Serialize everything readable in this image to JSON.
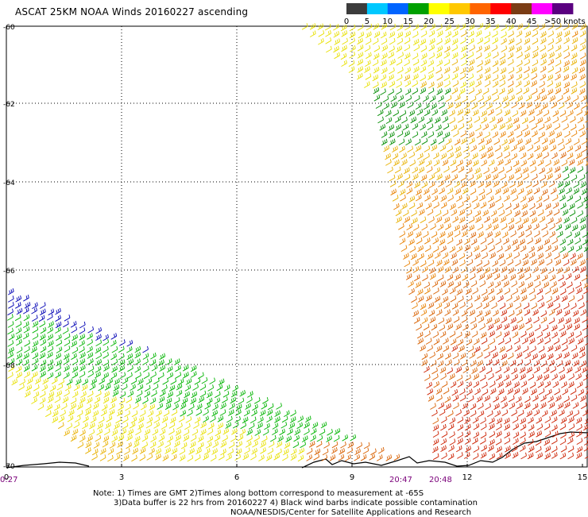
{
  "title": "ASCAT 25KM NOAA Winds 20160227 ascending",
  "colorbar": {
    "labels": [
      "0",
      "5",
      "10",
      "15",
      "20",
      "25",
      "30",
      "35",
      "40",
      "45",
      ">50 knots"
    ],
    "colors": [
      "#3c3c3c",
      "#00c8ff",
      "#0064ff",
      "#00a000",
      "#ffff00",
      "#ffc800",
      "#ff6400",
      "#ff0000",
      "#7a3c14",
      "#ff00ff",
      "#5a0080"
    ]
  },
  "axes": {
    "lat_labels": [
      "-60",
      "-62",
      "-64",
      "-66",
      "-68",
      "-70"
    ],
    "x_labels": [
      "0",
      "3",
      "6",
      "9",
      "12",
      "15"
    ]
  },
  "time_labels": [
    "0:27",
    "20:47",
    "20:48"
  ],
  "notes": [
    "Note: 1) Times are GMT 2)Times along bottom correspond to measurement at -65S",
    "3)Data buffer is 22 hrs from 20160227 4) Black wind barbs indicate possible contamination",
    "NOAA/NESDIS/Center for Satellite Applications and Research"
  ],
  "swaths": [
    {
      "name": "east",
      "colors": [
        "#e8e000",
        "#e8b000",
        "#e88000",
        "#d86000",
        "#cc2000"
      ]
    },
    {
      "name": "west",
      "colors": [
        "#0000b4",
        "#00b400",
        "#e8e000",
        "#e8b000"
      ]
    }
  ]
}
